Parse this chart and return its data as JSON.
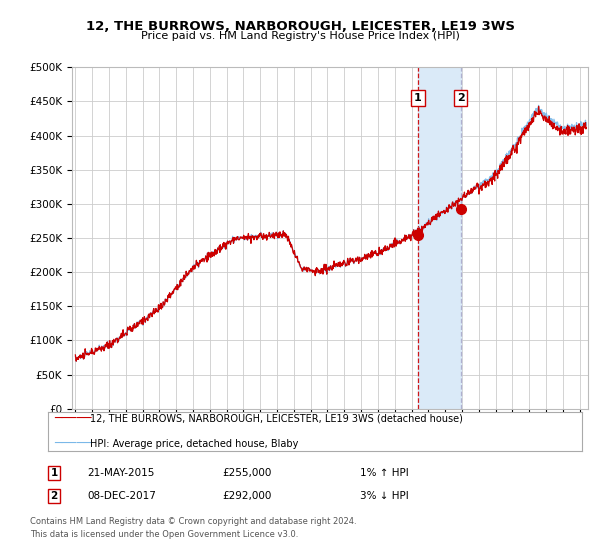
{
  "title": "12, THE BURROWS, NARBOROUGH, LEICESTER, LE19 3WS",
  "subtitle": "Price paid vs. HM Land Registry's House Price Index (HPI)",
  "ylabel_ticks": [
    "£0",
    "£50K",
    "£100K",
    "£150K",
    "£200K",
    "£250K",
    "£300K",
    "£350K",
    "£400K",
    "£450K",
    "£500K"
  ],
  "ytick_values": [
    0,
    50000,
    100000,
    150000,
    200000,
    250000,
    300000,
    350000,
    400000,
    450000,
    500000
  ],
  "ylim": [
    0,
    500000
  ],
  "xlim_start": 1994.8,
  "xlim_end": 2025.5,
  "transaction1": {
    "date_num": 2015.38,
    "price": 255000,
    "label": "1",
    "date_str": "21-MAY-2015",
    "pct": "1%",
    "dir": "↑"
  },
  "transaction2": {
    "date_num": 2017.92,
    "price": 292000,
    "label": "2",
    "date_str": "08-DEC-2017",
    "pct": "3%",
    "dir": "↓"
  },
  "legend_line1": "12, THE BURROWS, NARBOROUGH, LEICESTER, LE19 3WS (detached house)",
  "legend_line2": "HPI: Average price, detached house, Blaby",
  "footer1": "Contains HM Land Registry data © Crown copyright and database right 2024.",
  "footer2": "This data is licensed under the Open Government Licence v3.0.",
  "hpi_color": "#7ab8e8",
  "price_color": "#cc0000",
  "marker_color": "#cc0000",
  "shade_color": "#daeaf8",
  "vline1_color": "#cc0000",
  "vline2_color": "#aaaacc",
  "background_color": "#ffffff",
  "grid_color": "#cccccc"
}
